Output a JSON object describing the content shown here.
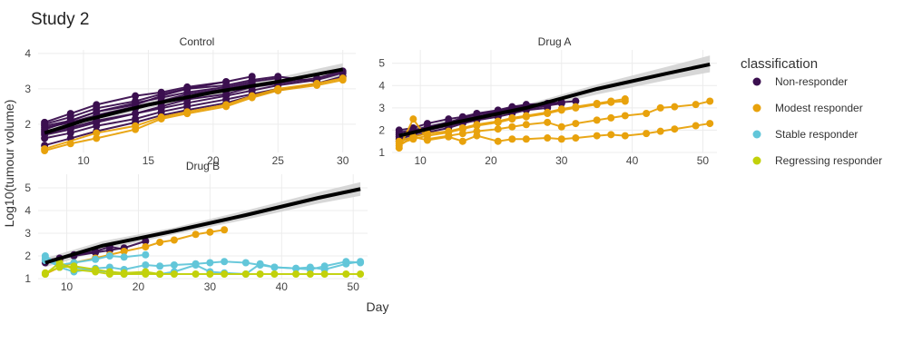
{
  "title": "Study 2",
  "xlabel": "Day",
  "ylabel": "Log10(tumour volume)",
  "legend": {
    "title": "classification",
    "items": [
      {
        "label": "Non-responder",
        "color": "#3b0f4f"
      },
      {
        "label": "Modest responder",
        "color": "#e8a20c"
      },
      {
        "label": "Stable responder",
        "color": "#62c6d9"
      },
      {
        "label": "Regressing responder",
        "color": "#c2d10a"
      }
    ]
  },
  "chart_data": [
    {
      "type": "line",
      "panel": "Control",
      "xlim": [
        6.5,
        31
      ],
      "ylim": [
        1.2,
        4.1
      ],
      "xticks": [
        10,
        15,
        20,
        25,
        30
      ],
      "yticks": [
        2,
        3,
        4
      ],
      "grid": true,
      "trend": {
        "x": [
          7,
          10,
          15,
          20,
          25,
          30
        ],
        "y": [
          1.75,
          2.1,
          2.55,
          2.9,
          3.2,
          3.55
        ],
        "band_lo": [
          1.62,
          1.98,
          2.45,
          2.8,
          3.08,
          3.35
        ],
        "band_hi": [
          1.88,
          2.22,
          2.65,
          3.0,
          3.32,
          3.72
        ]
      },
      "series": [
        {
          "class": "Non-responder",
          "x": [
            7,
            9,
            11,
            14,
            16,
            18,
            21,
            23,
            25
          ],
          "y": [
            1.95,
            2.1,
            2.35,
            2.6,
            2.75,
            2.9,
            3.05,
            3.2,
            3.3
          ]
        },
        {
          "class": "Non-responder",
          "x": [
            7,
            9,
            11,
            14,
            16,
            18,
            21,
            23,
            25
          ],
          "y": [
            1.8,
            1.95,
            2.2,
            2.45,
            2.6,
            2.75,
            2.95,
            3.1,
            3.2
          ]
        },
        {
          "class": "Non-responder",
          "x": [
            7,
            9,
            11,
            14,
            16,
            18,
            21,
            23
          ],
          "y": [
            2.05,
            2.3,
            2.55,
            2.8,
            2.9,
            3.05,
            3.2,
            3.35
          ]
        },
        {
          "class": "Non-responder",
          "x": [
            7,
            9,
            11,
            14,
            16,
            18,
            21,
            23,
            25,
            28,
            30
          ],
          "y": [
            1.7,
            1.85,
            2.05,
            2.3,
            2.45,
            2.6,
            2.8,
            2.95,
            3.1,
            3.25,
            3.45
          ]
        },
        {
          "class": "Non-responder",
          "x": [
            7,
            9,
            11,
            14,
            16,
            18,
            21,
            23,
            25
          ],
          "y": [
            1.6,
            1.75,
            1.95,
            2.15,
            2.35,
            2.5,
            2.7,
            2.85,
            3.0
          ]
        },
        {
          "class": "Non-responder",
          "x": [
            7,
            9,
            11,
            14,
            16,
            18,
            21,
            23
          ],
          "y": [
            1.9,
            2.05,
            2.25,
            2.5,
            2.65,
            2.85,
            3.0,
            3.15
          ]
        },
        {
          "class": "Non-responder",
          "x": [
            7,
            9,
            11,
            14,
            16,
            18,
            21
          ],
          "y": [
            1.85,
            2.1,
            2.35,
            2.55,
            2.8,
            3.0,
            3.2
          ]
        },
        {
          "class": "Non-responder",
          "x": [
            7,
            9,
            11,
            14,
            16,
            18,
            21,
            23,
            25,
            28,
            30
          ],
          "y": [
            1.4,
            1.6,
            1.8,
            2.05,
            2.25,
            2.4,
            2.6,
            2.8,
            2.95,
            3.15,
            3.35
          ]
        },
        {
          "class": "Non-responder",
          "x": [
            7,
            9,
            11,
            14,
            16,
            18,
            21,
            23,
            25,
            28
          ],
          "y": [
            2.0,
            2.2,
            2.45,
            2.65,
            2.85,
            3.0,
            3.1,
            3.25,
            3.35,
            3.2
          ]
        },
        {
          "class": "Non-responder",
          "x": [
            7,
            9,
            11,
            14,
            16,
            18,
            21,
            23,
            25,
            28,
            30
          ],
          "y": [
            1.75,
            1.9,
            2.1,
            2.3,
            2.5,
            2.7,
            2.85,
            3.05,
            3.15,
            3.3,
            3.5
          ]
        },
        {
          "class": "Modest responder",
          "x": [
            7,
            9,
            11,
            14,
            16,
            18,
            21,
            23,
            25,
            28,
            30
          ],
          "y": [
            1.25,
            1.45,
            1.6,
            1.85,
            2.15,
            2.3,
            2.5,
            2.75,
            2.95,
            3.1,
            3.25
          ]
        },
        {
          "class": "Modest responder",
          "x": [
            7,
            11,
            14,
            16,
            18,
            21,
            23,
            25,
            28,
            30
          ],
          "y": [
            1.3,
            1.75,
            1.95,
            2.2,
            2.35,
            2.55,
            2.8,
            3.0,
            3.15,
            3.3
          ]
        }
      ]
    },
    {
      "type": "line",
      "panel": "Drug A",
      "xlim": [
        6,
        52
      ],
      "ylim": [
        1,
        5.6
      ],
      "xticks": [
        10,
        20,
        30,
        40,
        50
      ],
      "yticks": [
        1,
        2,
        3,
        4,
        5
      ],
      "grid": true,
      "trend": {
        "x": [
          7,
          15,
          25,
          35,
          45,
          51
        ],
        "y": [
          1.75,
          2.35,
          3.0,
          3.85,
          4.55,
          4.95
        ],
        "band_lo": [
          1.55,
          2.2,
          2.85,
          3.6,
          4.25,
          4.6
        ],
        "band_hi": [
          1.95,
          2.5,
          3.15,
          4.05,
          4.85,
          5.35
        ]
      },
      "series": [
        {
          "class": "Non-responder",
          "x": [
            7,
            9,
            11,
            14,
            16,
            18,
            21,
            23,
            25,
            28,
            30,
            32
          ],
          "y": [
            2.0,
            2.1,
            2.3,
            2.5,
            2.6,
            2.75,
            2.9,
            3.05,
            3.15,
            3.2,
            3.25,
            3.3
          ]
        },
        {
          "class": "Non-responder",
          "x": [
            7,
            9,
            11,
            14,
            16,
            18,
            21,
            23,
            25,
            28,
            30
          ],
          "y": [
            1.8,
            1.95,
            2.1,
            2.3,
            2.5,
            2.6,
            2.8,
            2.95,
            3.05,
            3.1,
            3.2
          ]
        },
        {
          "class": "Non-responder",
          "x": [
            7,
            9,
            11,
            14,
            16,
            18,
            21,
            23,
            25,
            28
          ],
          "y": [
            1.6,
            1.8,
            2.0,
            2.2,
            2.35,
            2.5,
            2.7,
            2.85,
            2.95,
            3.1
          ]
        },
        {
          "class": "Non-responder",
          "x": [
            7,
            9,
            11,
            14,
            16,
            18,
            21,
            23,
            25,
            28,
            30
          ],
          "y": [
            1.9,
            2.0,
            2.15,
            2.35,
            2.55,
            2.7,
            2.85,
            3.0,
            3.1,
            3.15,
            3.25
          ]
        },
        {
          "class": "Non-responder",
          "x": [
            7,
            9,
            11,
            14,
            16,
            18,
            21,
            23,
            25,
            28
          ],
          "y": [
            1.5,
            1.7,
            1.9,
            2.1,
            2.3,
            2.45,
            2.6,
            2.75,
            2.9,
            3.0
          ]
        },
        {
          "class": "Non-responder",
          "x": [
            7,
            9,
            11,
            14,
            16,
            18,
            21,
            23
          ],
          "y": [
            1.7,
            1.9,
            2.05,
            2.25,
            2.45,
            2.6,
            2.8,
            2.9
          ]
        },
        {
          "class": "Modest responder",
          "x": [
            7,
            9,
            11,
            14,
            16,
            18,
            21,
            23,
            25,
            28,
            30,
            32,
            35,
            37,
            39
          ],
          "y": [
            1.4,
            1.6,
            1.75,
            1.9,
            2.05,
            2.2,
            2.35,
            2.5,
            2.6,
            2.75,
            2.9,
            3.0,
            3.15,
            3.25,
            3.3
          ]
        },
        {
          "class": "Modest responder",
          "x": [
            7,
            9,
            11,
            14,
            16,
            18,
            21,
            23,
            25,
            28,
            30,
            32,
            35,
            37,
            39
          ],
          "y": [
            1.5,
            1.7,
            1.85,
            1.95,
            2.1,
            2.25,
            2.4,
            2.55,
            2.65,
            2.8,
            2.95,
            3.05,
            3.2,
            3.3,
            3.4
          ]
        },
        {
          "class": "Modest responder",
          "x": [
            7,
            9,
            11,
            14,
            16,
            18,
            21,
            23,
            25,
            28,
            30,
            32,
            35,
            37,
            39,
            42,
            44,
            46,
            49,
            51
          ],
          "y": [
            1.2,
            2.5,
            1.6,
            1.75,
            1.85,
            1.95,
            2.05,
            2.15,
            2.25,
            2.35,
            2.15,
            2.3,
            2.45,
            2.55,
            2.65,
            2.75,
            3.0,
            3.05,
            3.15,
            3.3
          ]
        },
        {
          "class": "Modest responder",
          "x": [
            7,
            9,
            11,
            14,
            16,
            18,
            21,
            23,
            25,
            28,
            30,
            32,
            35,
            37,
            39,
            42,
            44,
            46,
            49,
            51
          ],
          "y": [
            1.3,
            1.7,
            1.55,
            1.7,
            1.5,
            1.75,
            1.5,
            1.6,
            1.6,
            1.65,
            1.6,
            1.65,
            1.75,
            1.8,
            1.75,
            1.85,
            1.95,
            2.05,
            2.2,
            2.3
          ]
        }
      ]
    },
    {
      "type": "line",
      "panel": "Drug B",
      "xlim": [
        6,
        52
      ],
      "ylim": [
        1,
        5.6
      ],
      "xticks": [
        10,
        20,
        30,
        40,
        50
      ],
      "yticks": [
        1,
        2,
        3,
        4,
        5
      ],
      "grid": true,
      "trend": {
        "x": [
          7,
          15,
          25,
          35,
          45,
          51
        ],
        "y": [
          1.7,
          2.45,
          3.1,
          3.8,
          4.55,
          4.95
        ],
        "band_lo": [
          1.5,
          2.25,
          2.95,
          3.6,
          4.3,
          4.65
        ],
        "band_hi": [
          1.9,
          2.65,
          3.25,
          4.0,
          4.8,
          5.25
        ]
      },
      "series": [
        {
          "class": "Non-responder",
          "x": [
            7,
            9,
            11,
            14,
            16,
            18,
            21
          ],
          "y": [
            1.8,
            1.9,
            2.0,
            2.15,
            2.25,
            2.35,
            2.65
          ]
        },
        {
          "class": "Non-responder",
          "x": [
            7,
            9,
            11,
            14,
            16,
            18
          ],
          "y": [
            1.7,
            1.85,
            2.05,
            2.2,
            2.4,
            2.3
          ]
        },
        {
          "class": "Modest responder",
          "x": [
            7,
            9,
            11,
            14,
            16,
            18,
            21,
            23,
            25,
            28,
            30,
            32
          ],
          "y": [
            1.2,
            1.5,
            1.7,
            1.9,
            2.05,
            2.2,
            2.4,
            2.6,
            2.7,
            2.95,
            3.05,
            3.15
          ]
        },
        {
          "class": "Stable responder",
          "x": [
            7,
            9,
            11,
            14,
            16,
            18,
            21
          ],
          "y": [
            2.0,
            1.6,
            1.7,
            1.85,
            2.0,
            1.95,
            2.05
          ]
        },
        {
          "class": "Stable responder",
          "x": [
            7,
            9,
            11,
            14,
            16,
            18,
            21,
            23,
            25,
            28,
            30,
            32,
            35,
            37,
            39,
            42,
            44,
            46,
            49,
            51
          ],
          "y": [
            1.9,
            1.5,
            1.3,
            1.45,
            1.5,
            1.4,
            1.6,
            1.55,
            1.6,
            1.65,
            1.7,
            1.75,
            1.7,
            1.6,
            1.5,
            1.45,
            1.4,
            1.55,
            1.75,
            1.7
          ]
        },
        {
          "class": "Stable responder",
          "x": [
            7,
            9,
            11,
            14,
            16,
            18,
            21,
            23,
            25,
            28,
            30,
            32,
            35,
            37,
            39,
            42,
            44,
            46,
            49,
            51
          ],
          "y": [
            1.8,
            1.55,
            1.5,
            1.35,
            1.3,
            1.2,
            1.25,
            1.2,
            1.3,
            1.6,
            1.3,
            1.25,
            1.2,
            1.65,
            1.5,
            1.45,
            1.5,
            1.4,
            1.65,
            1.75
          ]
        },
        {
          "class": "Regressing responder",
          "x": [
            7,
            9,
            11,
            14,
            16,
            18,
            21,
            23,
            25,
            28,
            30,
            32,
            35,
            37,
            39,
            42,
            44,
            46,
            49,
            51
          ],
          "y": [
            1.2,
            1.7,
            1.4,
            1.3,
            1.2,
            1.2,
            1.2,
            1.2,
            1.2,
            1.2,
            1.2,
            1.2,
            1.2,
            1.2,
            1.2,
            1.2,
            1.2,
            1.2,
            1.2,
            1.2
          ]
        },
        {
          "class": "Regressing responder",
          "x": [
            7,
            9,
            11,
            14,
            16,
            18,
            21,
            23
          ],
          "y": [
            1.25,
            1.5,
            1.55,
            1.4,
            1.3,
            1.25,
            1.3,
            1.2
          ]
        }
      ]
    }
  ]
}
